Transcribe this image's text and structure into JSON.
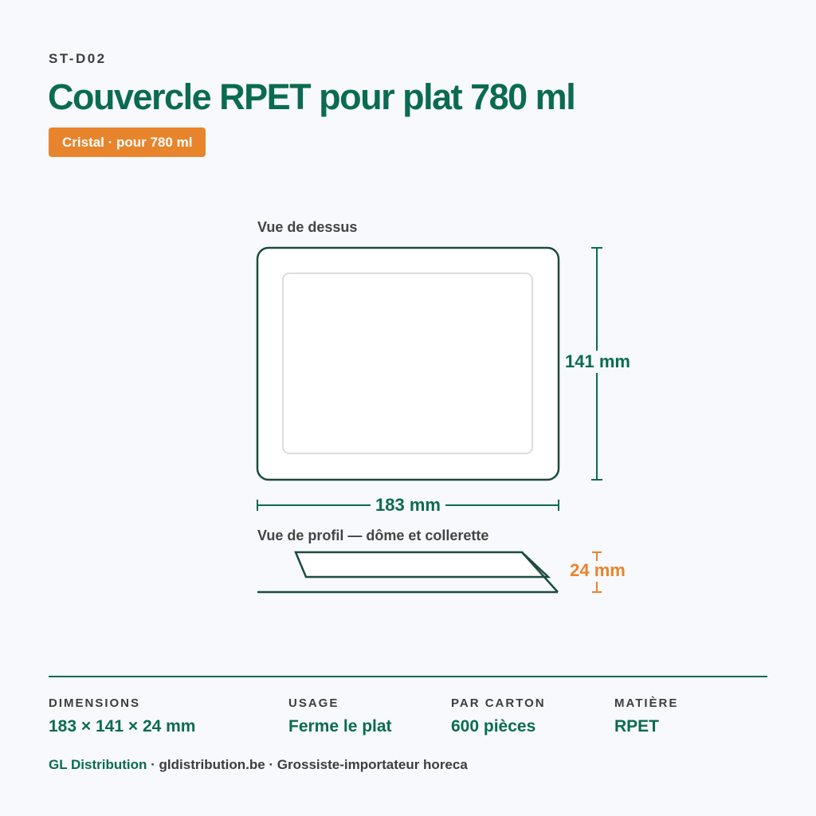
{
  "header": {
    "code": "ST-D02",
    "title": "Couvercle RPET pour plat 780 ml",
    "badge": "Cristal · pour 780 ml"
  },
  "diagram": {
    "top_view_label": "Vue de dessus",
    "height_label": "141 mm",
    "width_label": "183 mm",
    "profile_label": "Vue de profil — dôme et collerette",
    "depth_label": "24 mm"
  },
  "specs": [
    {
      "label": "DIMENSIONS",
      "value": "183 × 141 × 24 mm"
    },
    {
      "label": "USAGE",
      "value": "Ferme le plat"
    },
    {
      "label": "PAR CARTON",
      "value": "600 pièces"
    },
    {
      "label": "MATIÈRE",
      "value": "RPET"
    }
  ],
  "footer": {
    "brand": "GL Distribution",
    "text": "· gldistribution.be · Grossiste-importateur horeca"
  }
}
